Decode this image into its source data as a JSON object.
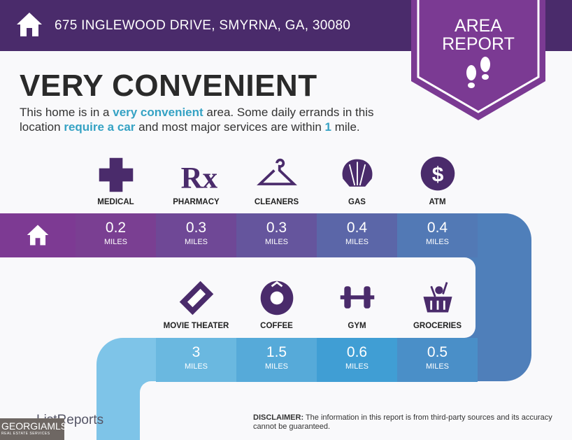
{
  "header": {
    "address": "675 INGLEWOOD DRIVE, SMYRNA, GA, 30080",
    "badge_line1": "AREA",
    "badge_line2": "REPORT"
  },
  "title": "VERY CONVENIENT",
  "description": {
    "p1": "This home is in a ",
    "h1": "very convenient",
    "p2": " area. Some daily errands in this location ",
    "h2": "require a car",
    "p3": " and most major services are within ",
    "h3": "1",
    "p4": " mile."
  },
  "unit": "MILES",
  "row1": [
    {
      "label": "MEDICAL",
      "value": "0.2",
      "icon": "medical-cross-icon",
      "color": "#7a3f92"
    },
    {
      "label": "PHARMACY",
      "value": "0.3",
      "icon": "rx-icon",
      "color": "#6f4896"
    },
    {
      "label": "CLEANERS",
      "value": "0.3",
      "icon": "hanger-icon",
      "color": "#65559d"
    },
    {
      "label": "GAS",
      "value": "0.4",
      "icon": "shell-icon",
      "color": "#5b66a8"
    },
    {
      "label": "ATM",
      "value": "0.4",
      "icon": "dollar-icon",
      "color": "#5279b5"
    }
  ],
  "row2": [
    {
      "label": "MOVIE THEATER",
      "value": "3",
      "icon": "ticket-icon",
      "color": "#6ab8e0"
    },
    {
      "label": "COFFEE",
      "value": "1.5",
      "icon": "starbucks-icon",
      "color": "#56aad9"
    },
    {
      "label": "GYM",
      "value": "0.6",
      "icon": "dumbbell-icon",
      "color": "#409ed4"
    },
    {
      "label": "GROCERIES",
      "value": "0.5",
      "icon": "basket-icon",
      "color": "#4a8fc8"
    }
  ],
  "footer": {
    "disclaimer_label": "DISCLAIMER:",
    "disclaimer": " The information in this report is from third-party sources and its accuracy cannot be guaranteed.",
    "brand": "ListReports",
    "watermark": "GEORGIAMLS",
    "watermark_sub": "REAL ESTATE SERVICES"
  }
}
